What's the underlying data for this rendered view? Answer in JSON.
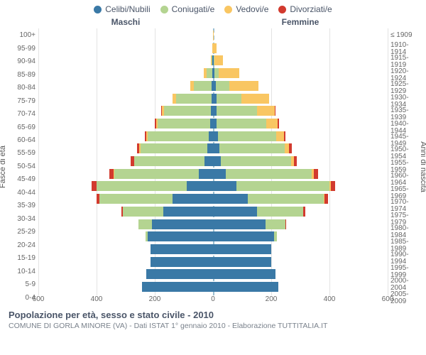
{
  "chart": {
    "type": "population-pyramid",
    "title": "Popolazione per età, sesso e stato civile - 2010",
    "subtitle": "COMUNE DI GORLA MINORE (VA) - Dati ISTAT 1° gennaio 2010 - Elaborazione TUTTITALIA.IT",
    "gender_left": "Maschi",
    "gender_right": "Femmine",
    "yaxis_left_title": "Fasce di età",
    "yaxis_right_title": "Anni di nascita",
    "xmax": 600,
    "xticks": [
      600,
      400,
      200,
      0,
      200,
      400,
      600
    ],
    "legend": [
      {
        "label": "Celibi/Nubili",
        "color": "#3a79a6"
      },
      {
        "label": "Coniugati/e",
        "color": "#b4d491"
      },
      {
        "label": "Vedovi/e",
        "color": "#f9c662"
      },
      {
        "label": "Divorziati/e",
        "color": "#d23a2e"
      }
    ],
    "grid_color": "#e3e3e3",
    "centerline_color": "#9bbfd1",
    "rows": [
      {
        "age": "100+",
        "year": "≤ 1909",
        "m": [
          0,
          0,
          0,
          0
        ],
        "f": [
          0,
          0,
          2,
          0
        ]
      },
      {
        "age": "95-99",
        "year": "1910-1914",
        "m": [
          0,
          0,
          3,
          0
        ],
        "f": [
          0,
          0,
          12,
          0
        ]
      },
      {
        "age": "90-94",
        "year": "1915-1919",
        "m": [
          2,
          3,
          3,
          0
        ],
        "f": [
          2,
          3,
          30,
          0
        ]
      },
      {
        "age": "85-89",
        "year": "1920-1924",
        "m": [
          3,
          20,
          10,
          0
        ],
        "f": [
          5,
          15,
          70,
          0
        ]
      },
      {
        "age": "80-84",
        "year": "1925-1929",
        "m": [
          5,
          60,
          12,
          0
        ],
        "f": [
          10,
          45,
          100,
          0
        ]
      },
      {
        "age": "75-79",
        "year": "1930-1934",
        "m": [
          6,
          120,
          12,
          0
        ],
        "f": [
          12,
          85,
          95,
          0
        ]
      },
      {
        "age": "70-74",
        "year": "1935-1939",
        "m": [
          8,
          160,
          8,
          2
        ],
        "f": [
          12,
          140,
          60,
          3
        ]
      },
      {
        "age": "65-69",
        "year": "1940-1944",
        "m": [
          10,
          180,
          6,
          3
        ],
        "f": [
          12,
          170,
          40,
          4
        ]
      },
      {
        "age": "60-64",
        "year": "1945-1949",
        "m": [
          15,
          210,
          4,
          6
        ],
        "f": [
          18,
          200,
          25,
          6
        ]
      },
      {
        "age": "55-59",
        "year": "1950-1954",
        "m": [
          20,
          230,
          3,
          8
        ],
        "f": [
          22,
          225,
          15,
          8
        ]
      },
      {
        "age": "50-54",
        "year": "1955-1959",
        "m": [
          30,
          240,
          2,
          10
        ],
        "f": [
          28,
          240,
          10,
          10
        ]
      },
      {
        "age": "45-49",
        "year": "1960-1964",
        "m": [
          50,
          290,
          2,
          15
        ],
        "f": [
          45,
          295,
          6,
          14
        ]
      },
      {
        "age": "40-44",
        "year": "1965-1969",
        "m": [
          90,
          310,
          0,
          18
        ],
        "f": [
          80,
          320,
          4,
          16
        ]
      },
      {
        "age": "35-39",
        "year": "1970-1974",
        "m": [
          140,
          250,
          0,
          10
        ],
        "f": [
          120,
          260,
          2,
          12
        ]
      },
      {
        "age": "30-34",
        "year": "1975-1979",
        "m": [
          170,
          140,
          0,
          5
        ],
        "f": [
          150,
          160,
          0,
          6
        ]
      },
      {
        "age": "25-29",
        "year": "1980-1984",
        "m": [
          210,
          45,
          0,
          0
        ],
        "f": [
          180,
          70,
          0,
          2
        ]
      },
      {
        "age": "20-24",
        "year": "1985-1989",
        "m": [
          225,
          6,
          0,
          0
        ],
        "f": [
          210,
          10,
          0,
          0
        ]
      },
      {
        "age": "15-19",
        "year": "1990-1994",
        "m": [
          215,
          0,
          0,
          0
        ],
        "f": [
          200,
          0,
          0,
          0
        ]
      },
      {
        "age": "10-14",
        "year": "1995-1999",
        "m": [
          215,
          0,
          0,
          0
        ],
        "f": [
          200,
          0,
          0,
          0
        ]
      },
      {
        "age": "5-9",
        "year": "2000-2004",
        "m": [
          230,
          0,
          0,
          0
        ],
        "f": [
          215,
          0,
          0,
          0
        ]
      },
      {
        "age": "0-4",
        "year": "2005-2009",
        "m": [
          245,
          0,
          0,
          0
        ],
        "f": [
          225,
          0,
          0,
          0
        ]
      }
    ]
  }
}
